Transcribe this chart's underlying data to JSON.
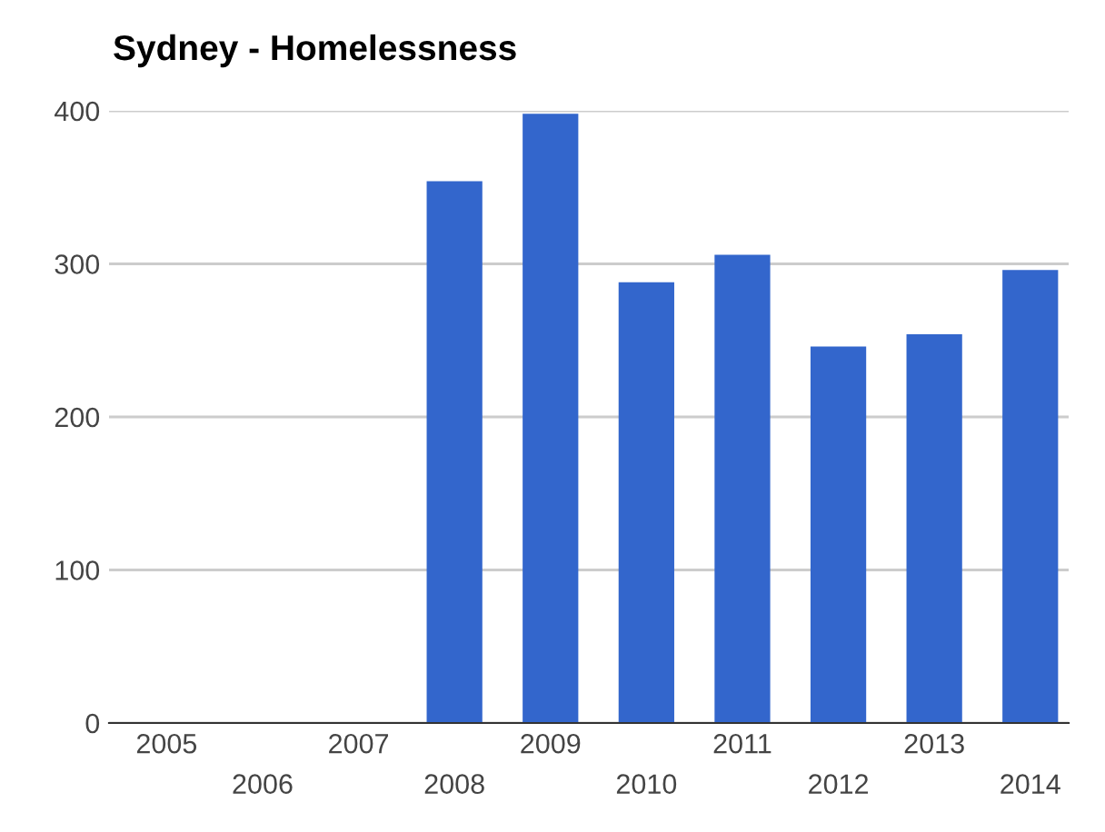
{
  "chart_data": {
    "type": "bar",
    "title": "Sydney - Homelessness",
    "categories": [
      "2005",
      "2006",
      "2007",
      "2008",
      "2009",
      "2010",
      "2011",
      "2012",
      "2013",
      "2014"
    ],
    "values": [
      null,
      null,
      null,
      354,
      398,
      288,
      306,
      246,
      254,
      296
    ],
    "color": "#3366cc",
    "ylim": [
      0,
      400
    ],
    "yticks": [
      0,
      100,
      200,
      300,
      400
    ],
    "grid": "y",
    "legend": false
  }
}
